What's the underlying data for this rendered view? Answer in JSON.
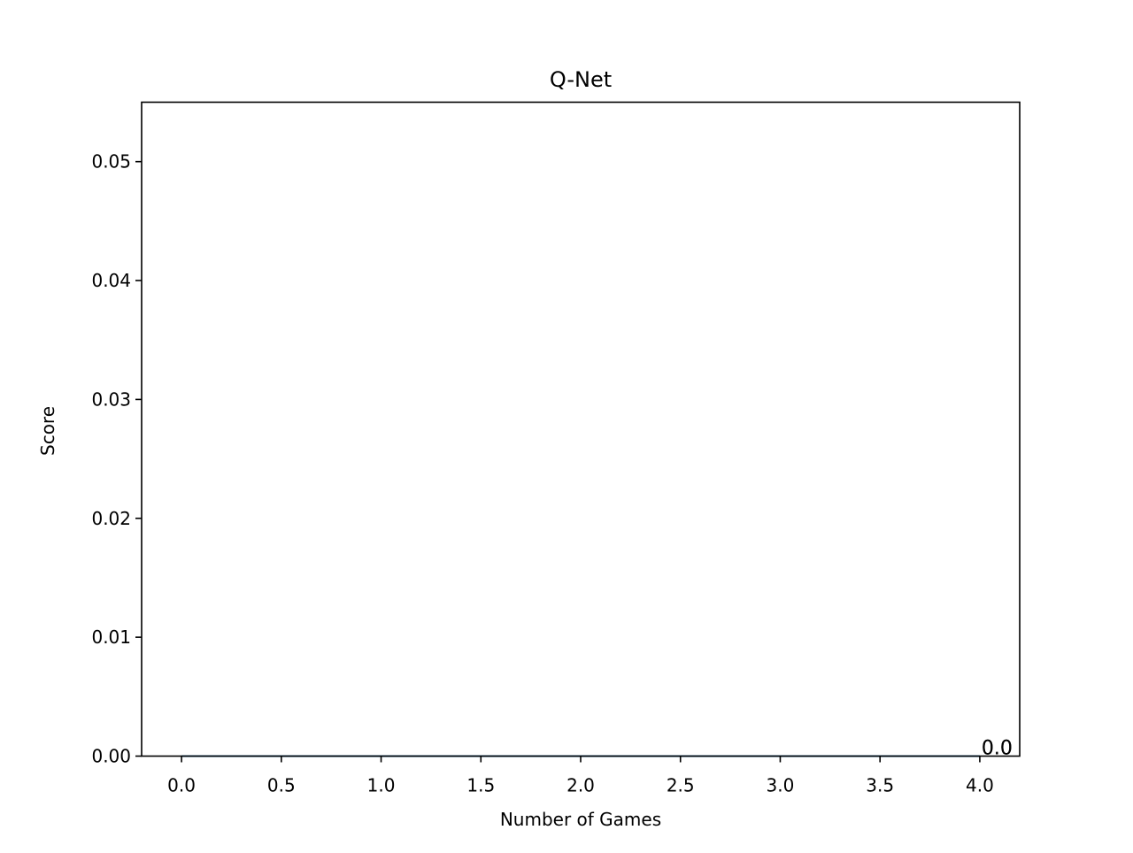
{
  "chart_data": {
    "type": "line",
    "title": "Q-Net",
    "xlabel": "Number of Games",
    "ylabel": "Score",
    "xlim": [
      -0.2,
      4.2
    ],
    "ylim": [
      0.0,
      0.055
    ],
    "x_ticks": [
      "0.0",
      "0.5",
      "1.0",
      "1.5",
      "2.0",
      "2.5",
      "3.0",
      "3.5",
      "4.0"
    ],
    "x_tick_values": [
      0.0,
      0.5,
      1.0,
      1.5,
      2.0,
      2.5,
      3.0,
      3.5,
      4.0
    ],
    "y_ticks": [
      "0.00",
      "0.01",
      "0.02",
      "0.03",
      "0.04",
      "0.05"
    ],
    "y_tick_values": [
      0.0,
      0.01,
      0.02,
      0.03,
      0.04,
      0.05
    ],
    "grid": false,
    "series": [
      {
        "x": [
          0,
          1,
          2,
          3,
          4
        ],
        "values": [
          0,
          0,
          0,
          0,
          0
        ],
        "color": "#2ca02c",
        "last_label": "0.0"
      },
      {
        "x": [
          0,
          1,
          2,
          3,
          4
        ],
        "values": [
          0,
          0,
          0,
          0,
          0
        ],
        "color": "#1f77b4",
        "last_label": "0.0"
      }
    ]
  }
}
